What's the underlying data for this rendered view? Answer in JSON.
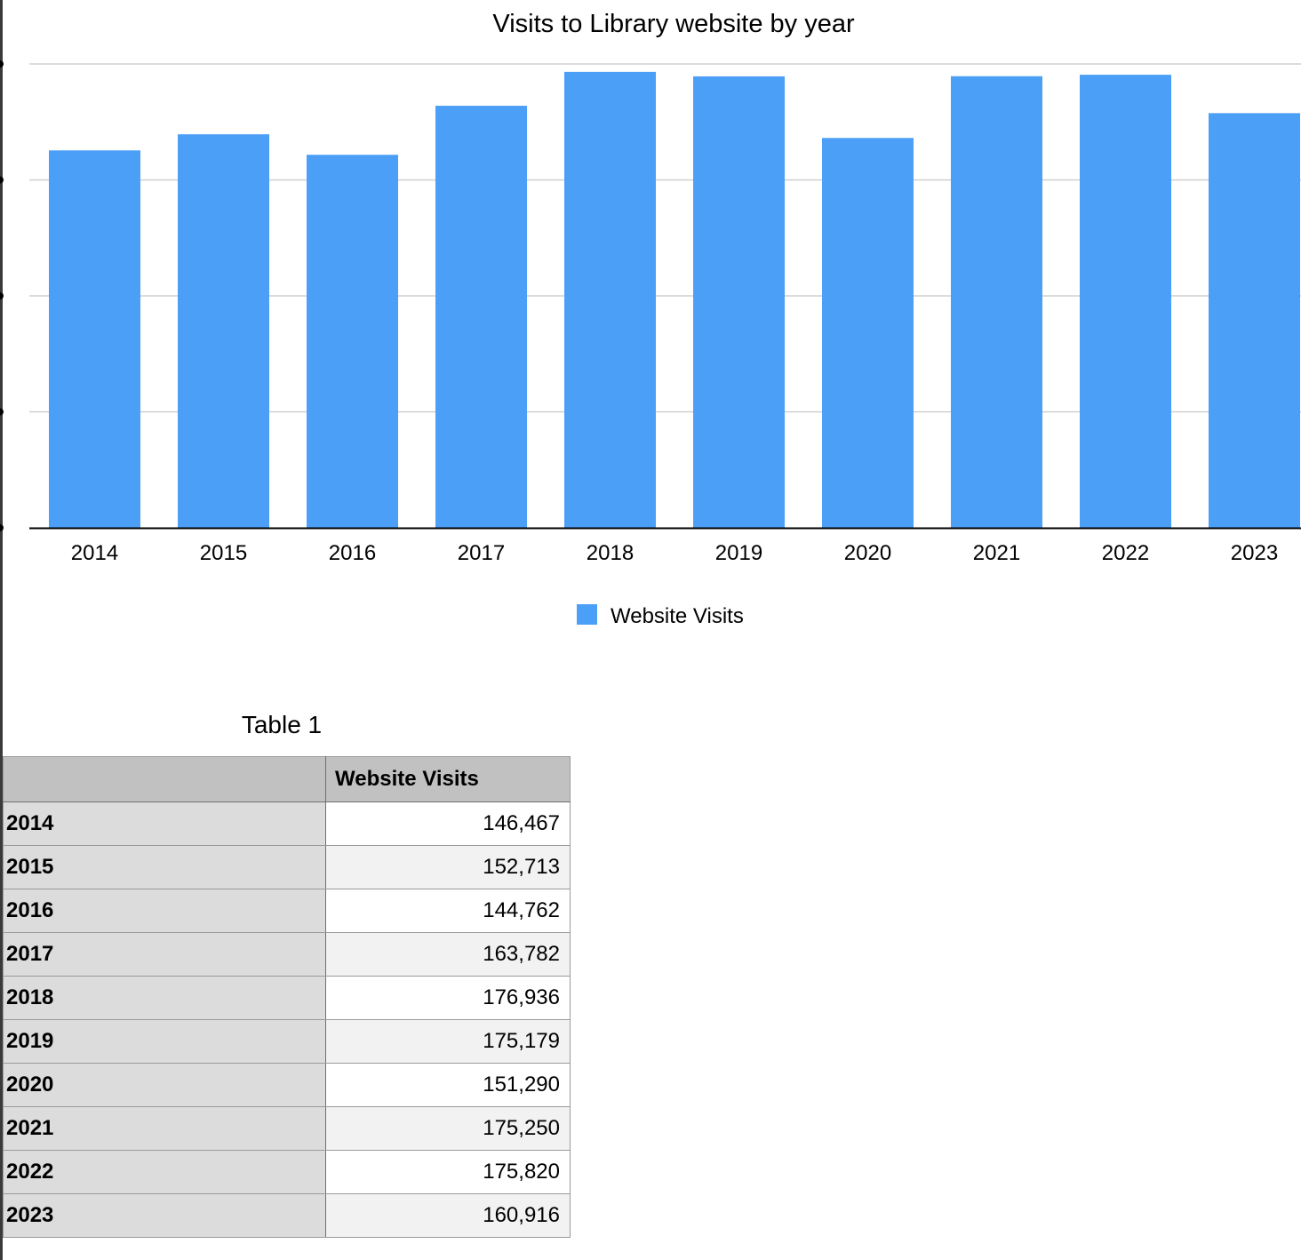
{
  "chart_data": {
    "type": "bar",
    "title": "Visits to Library website by year",
    "categories": [
      "2014",
      "2015",
      "2016",
      "2017",
      "2018",
      "2019",
      "2020",
      "2021",
      "2022",
      "2023"
    ],
    "series": [
      {
        "name": "Website Visits",
        "values": [
          146467,
          152713,
          144762,
          163782,
          176936,
          175179,
          151290,
          175250,
          175820,
          160916
        ]
      }
    ],
    "ylim": [
      0,
      180000
    ],
    "grid": true,
    "legend": "bottom-center",
    "bar_color": "#4c9ff7"
  },
  "table": {
    "title": "Table 1",
    "corner_header": "",
    "column_header": "Website Visits",
    "rows": [
      {
        "label": "2014",
        "value": "146,467"
      },
      {
        "label": "2015",
        "value": "152,713"
      },
      {
        "label": "2016",
        "value": "144,762"
      },
      {
        "label": "2017",
        "value": "163,782"
      },
      {
        "label": "2018",
        "value": "176,936"
      },
      {
        "label": "2019",
        "value": "175,179"
      },
      {
        "label": "2020",
        "value": "151,290"
      },
      {
        "label": "2021",
        "value": "175,250"
      },
      {
        "label": "2022",
        "value": "175,820"
      },
      {
        "label": "2023",
        "value": "160,916"
      }
    ]
  }
}
